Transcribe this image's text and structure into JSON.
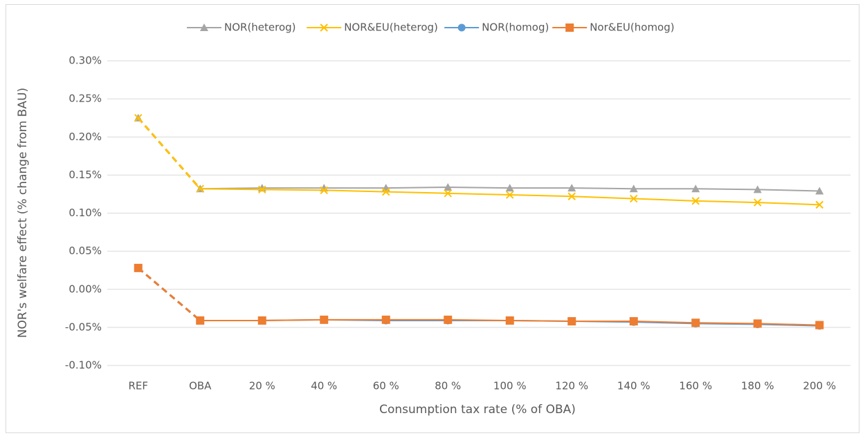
{
  "chart_data": {
    "type": "line",
    "x_label": "Consumption tax rate (% of OBA)",
    "y_label": "NOR's welfare effect (% change from BAU)",
    "categories": [
      "REF",
      "OBA",
      "20 %",
      "40 %",
      "60 %",
      "80 %",
      "100 %",
      "120 %",
      "140 %",
      "160 %",
      "180 %",
      "200 %"
    ],
    "series": [
      {
        "name": "NOR(heterog)",
        "color": "#a5a5a5",
        "marker": "triangle",
        "values": [
          0.225,
          0.132,
          0.133,
          0.133,
          0.133,
          0.134,
          0.133,
          0.133,
          0.132,
          0.132,
          0.131,
          0.129
        ]
      },
      {
        "name": "NOR&EU(heterog)",
        "color": "#ffc000",
        "marker": "x",
        "values": [
          0.225,
          0.132,
          0.131,
          0.13,
          0.128,
          0.126,
          0.124,
          0.122,
          0.119,
          0.116,
          0.114,
          0.111
        ]
      },
      {
        "name": "NOR(homog)",
        "color": "#5b9bd5",
        "marker": "circle",
        "values": [
          0.028,
          -0.041,
          -0.041,
          -0.04,
          -0.041,
          -0.041,
          -0.041,
          -0.042,
          -0.043,
          -0.045,
          -0.046,
          -0.048
        ]
      },
      {
        "name": "Nor&EU(homog)",
        "color": "#ed7d31",
        "marker": "square",
        "values": [
          0.028,
          -0.041,
          -0.041,
          -0.04,
          -0.04,
          -0.04,
          -0.041,
          -0.042,
          -0.042,
          -0.044,
          -0.045,
          -0.047
        ]
      }
    ],
    "dash_first_segment": true,
    "ylim": [
      -0.1,
      0.3
    ],
    "yticks": [
      {
        "value": -0.1,
        "label": "-0.10%"
      },
      {
        "value": -0.05,
        "label": "-0.05%"
      },
      {
        "value": 0,
        "label": "0.00%"
      },
      {
        "value": 0.05,
        "label": "0.05%"
      },
      {
        "value": 0.1,
        "label": "0.10%"
      },
      {
        "value": 0.15,
        "label": "0.15%"
      },
      {
        "value": 0.2,
        "label": "0.20%"
      },
      {
        "value": 0.25,
        "label": "0.25%"
      },
      {
        "value": 0.3,
        "label": "0.30%"
      }
    ],
    "grid": true,
    "legend": "top"
  }
}
